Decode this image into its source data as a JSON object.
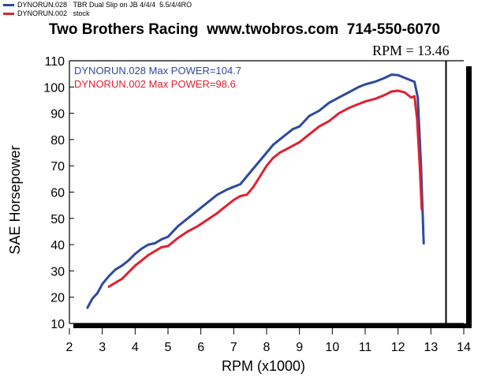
{
  "legend": [
    {
      "name": "DYNORUN.028",
      "desc": "TBR Dual Slip on JB 4/4/4  5.5/4/4RO",
      "color": "#2d4a9e"
    },
    {
      "name": "DYNORUN.002",
      "desc": "stock",
      "color": "#e0202e"
    }
  ],
  "header": {
    "title": "Two Brothers Racing  www.twobros.com  714-550-6070",
    "rpm_readout": "RPM = 13.46"
  },
  "chart_data": {
    "type": "line",
    "title": "Two Brothers Racing  www.twobros.com  714-550-6070",
    "xlabel": "RPM (x1000)",
    "ylabel": "SAE Horsepower",
    "xlim": [
      2,
      14
    ],
    "ylim": [
      10,
      110
    ],
    "xticks": [
      2,
      3,
      4,
      5,
      6,
      7,
      8,
      9,
      10,
      11,
      12,
      13,
      14
    ],
    "yticks": [
      10,
      20,
      30,
      40,
      50,
      60,
      70,
      80,
      90,
      100,
      110
    ],
    "grid": false,
    "cursor_rpm": 13.46,
    "annotations": [
      {
        "text": "DYNORUN.028  Max POWER=104.7",
        "color": "#2d4a9e"
      },
      {
        "text": "DYNORUN.002  Max POWER=98.6",
        "color": "#e0202e"
      }
    ],
    "series": [
      {
        "name": "DYNORUN.028",
        "color": "#2d4a9e",
        "x": [
          2.55,
          2.7,
          2.85,
          3.0,
          3.2,
          3.4,
          3.6,
          3.8,
          4.0,
          4.2,
          4.4,
          4.6,
          4.8,
          5.0,
          5.3,
          5.6,
          5.9,
          6.2,
          6.5,
          6.8,
          7.0,
          7.2,
          7.4,
          7.6,
          7.8,
          8.0,
          8.2,
          8.5,
          8.8,
          9.0,
          9.3,
          9.6,
          9.9,
          10.2,
          10.5,
          10.8,
          11.0,
          11.3,
          11.6,
          11.8,
          12.0,
          12.2,
          12.4,
          12.5,
          12.6,
          12.7,
          12.78
        ],
        "y": [
          16,
          19.5,
          21.5,
          25,
          28,
          30.5,
          32,
          34,
          36.5,
          38.5,
          40,
          40.5,
          42,
          43,
          47,
          50,
          53,
          56,
          59,
          61,
          62,
          63,
          66,
          69,
          72,
          75,
          78,
          81,
          84,
          85,
          89,
          91,
          94,
          96,
          98,
          100,
          101,
          102,
          103.5,
          104.7,
          104.5,
          103.5,
          102.5,
          102,
          96,
          70,
          40.5
        ]
      },
      {
        "name": "DYNORUN.002",
        "color": "#e0202e",
        "x": [
          3.2,
          3.4,
          3.6,
          3.8,
          4.0,
          4.2,
          4.4,
          4.6,
          4.8,
          5.0,
          5.3,
          5.6,
          5.9,
          6.2,
          6.5,
          6.8,
          7.0,
          7.2,
          7.4,
          7.6,
          7.8,
          8.0,
          8.2,
          8.4,
          8.7,
          9.0,
          9.3,
          9.6,
          9.9,
          10.2,
          10.5,
          10.8,
          11.0,
          11.3,
          11.6,
          11.8,
          12.0,
          12.2,
          12.4,
          12.5,
          12.58,
          12.66,
          12.72
        ],
        "y": [
          24,
          25.5,
          27,
          29.5,
          32,
          34,
          36,
          37.5,
          39,
          39.5,
          42.5,
          45,
          47,
          49.5,
          52,
          55,
          57,
          58.5,
          59,
          62,
          66,
          70,
          73,
          75,
          77,
          79,
          82,
          85,
          87,
          90,
          92,
          93.5,
          94.5,
          95.5,
          97,
          98.3,
          98.6,
          98,
          96,
          96.5,
          88,
          70,
          53.5
        ]
      }
    ]
  }
}
